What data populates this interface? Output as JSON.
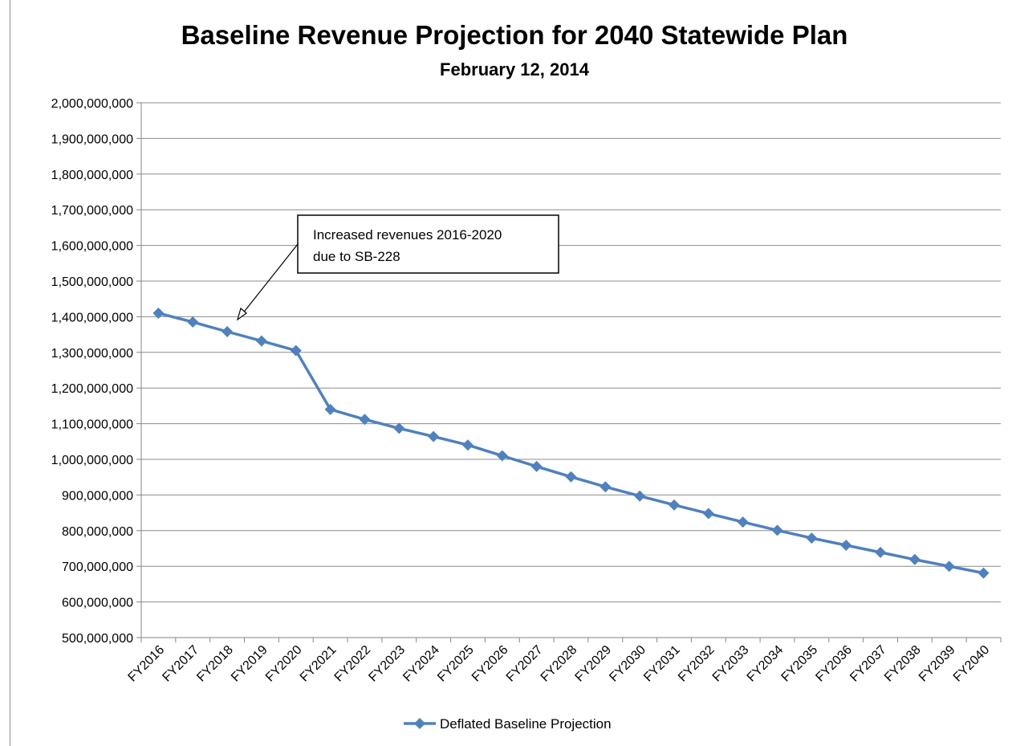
{
  "chart_data": {
    "type": "line",
    "title": "Baseline Revenue Projection for 2040 Statewide Plan",
    "subtitle": "February 12, 2014",
    "xlabel": "",
    "ylabel": "",
    "ylim": [
      500000000,
      2000000000
    ],
    "ytick_step": 100000000,
    "yticks": [
      "500,000,000",
      "600,000,000",
      "700,000,000",
      "800,000,000",
      "900,000,000",
      "1,000,000,000",
      "1,100,000,000",
      "1,200,000,000",
      "1,300,000,000",
      "1,400,000,000",
      "1,500,000,000",
      "1,600,000,000",
      "1,700,000,000",
      "1,800,000,000",
      "1,900,000,000",
      "2,000,000,000"
    ],
    "grid": true,
    "legend_position": "bottom",
    "categories": [
      "FY2016",
      "FY2017",
      "FY2018",
      "FY2019",
      "FY2020",
      "FY2021",
      "FY2022",
      "FY2023",
      "FY2024",
      "FY2025",
      "FY2026",
      "FY2027",
      "FY2028",
      "FY2029",
      "FY2030",
      "FY2031",
      "FY2032",
      "FY2033",
      "FY2034",
      "FY2035",
      "FY2036",
      "FY2037",
      "FY2038",
      "FY2039",
      "FY2040"
    ],
    "series": [
      {
        "name": "Deflated Baseline Projection",
        "color": "#4f81bd",
        "marker": "diamond",
        "values": [
          1410000000,
          1385000000,
          1358000000,
          1332000000,
          1305000000,
          1140000000,
          1112000000,
          1087000000,
          1064000000,
          1040000000,
          1010000000,
          980000000,
          951000000,
          923000000,
          897000000,
          872000000,
          848000000,
          824000000,
          801000000,
          779000000,
          759000000,
          739000000,
          719000000,
          700000000,
          681000000
        ]
      }
    ],
    "annotations": [
      {
        "text_lines": [
          "Increased revenues 2016-2020",
          "due to SB-228"
        ],
        "points_to_category": "FY2018"
      }
    ]
  }
}
